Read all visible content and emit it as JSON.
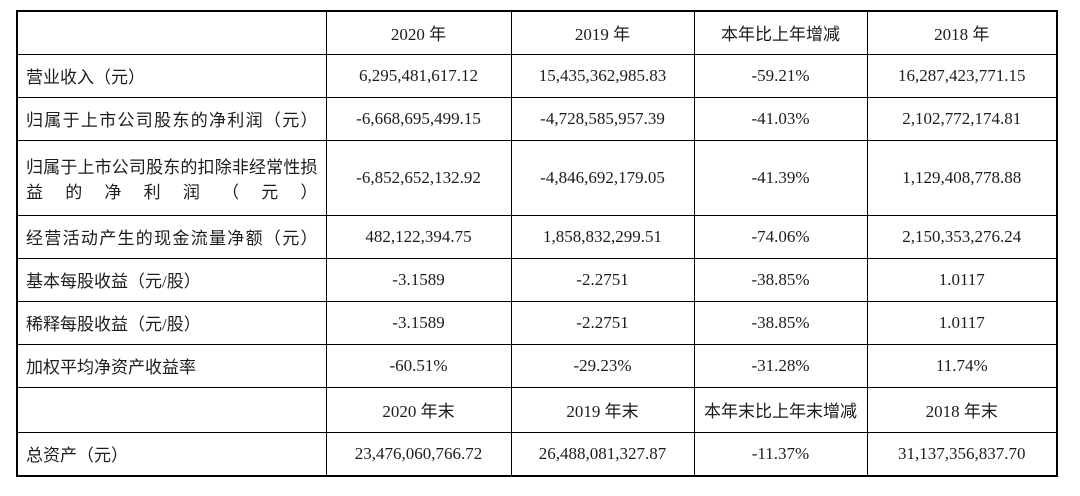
{
  "colors": {
    "page_background": "#ffffff",
    "shaded_cell_background": "#d9d9d9",
    "data_cell_background": "#ffffff",
    "border": "#000000",
    "text": "#1c1c1c"
  },
  "table": {
    "header_row_1": {
      "blank": "",
      "col_2020": "2020 年",
      "col_2019": "2019 年",
      "col_change": "本年比上年增减",
      "col_2018": "2018 年"
    },
    "data_rows_1": [
      {
        "label": "营业收入（元）",
        "values": [
          "6,295,481,617.12",
          "15,435,362,985.83",
          "-59.21%",
          "16,287,423,771.15"
        ]
      },
      {
        "label": "归属于上市公司股东的净利润（元）",
        "values": [
          "-6,668,695,499.15",
          "-4,728,585,957.39",
          "-41.03%",
          "2,102,772,174.81"
        ]
      },
      {
        "label": "归属于上市公司股东的扣除非经常性损益的净利润（元）",
        "values": [
          "-6,852,652,132.92",
          "-4,846,692,179.05",
          "-41.39%",
          "1,129,408,778.88"
        ]
      },
      {
        "label": "经营活动产生的现金流量净额（元）",
        "values": [
          "482,122,394.75",
          "1,858,832,299.51",
          "-74.06%",
          "2,150,353,276.24"
        ]
      },
      {
        "label": "基本每股收益（元/股）",
        "values": [
          "-3.1589",
          "-2.2751",
          "-38.85%",
          "1.0117"
        ]
      },
      {
        "label": "稀释每股收益（元/股）",
        "values": [
          "-3.1589",
          "-2.2751",
          "-38.85%",
          "1.0117"
        ]
      },
      {
        "label": "加权平均净资产收益率",
        "values": [
          "-60.51%",
          "-29.23%",
          "-31.28%",
          "11.74%"
        ]
      }
    ],
    "header_row_2": {
      "blank": "",
      "col_2020_end": "2020 年末",
      "col_2019_end": "2019 年末",
      "col_change_end": "本年末比上年末增减",
      "col_2018_end": "2018 年末"
    },
    "data_rows_2": [
      {
        "label": "总资产（元）",
        "values": [
          "23,476,060,766.72",
          "26,488,081,327.87",
          "-11.37%",
          "31,137,356,837.70"
        ]
      }
    ]
  }
}
